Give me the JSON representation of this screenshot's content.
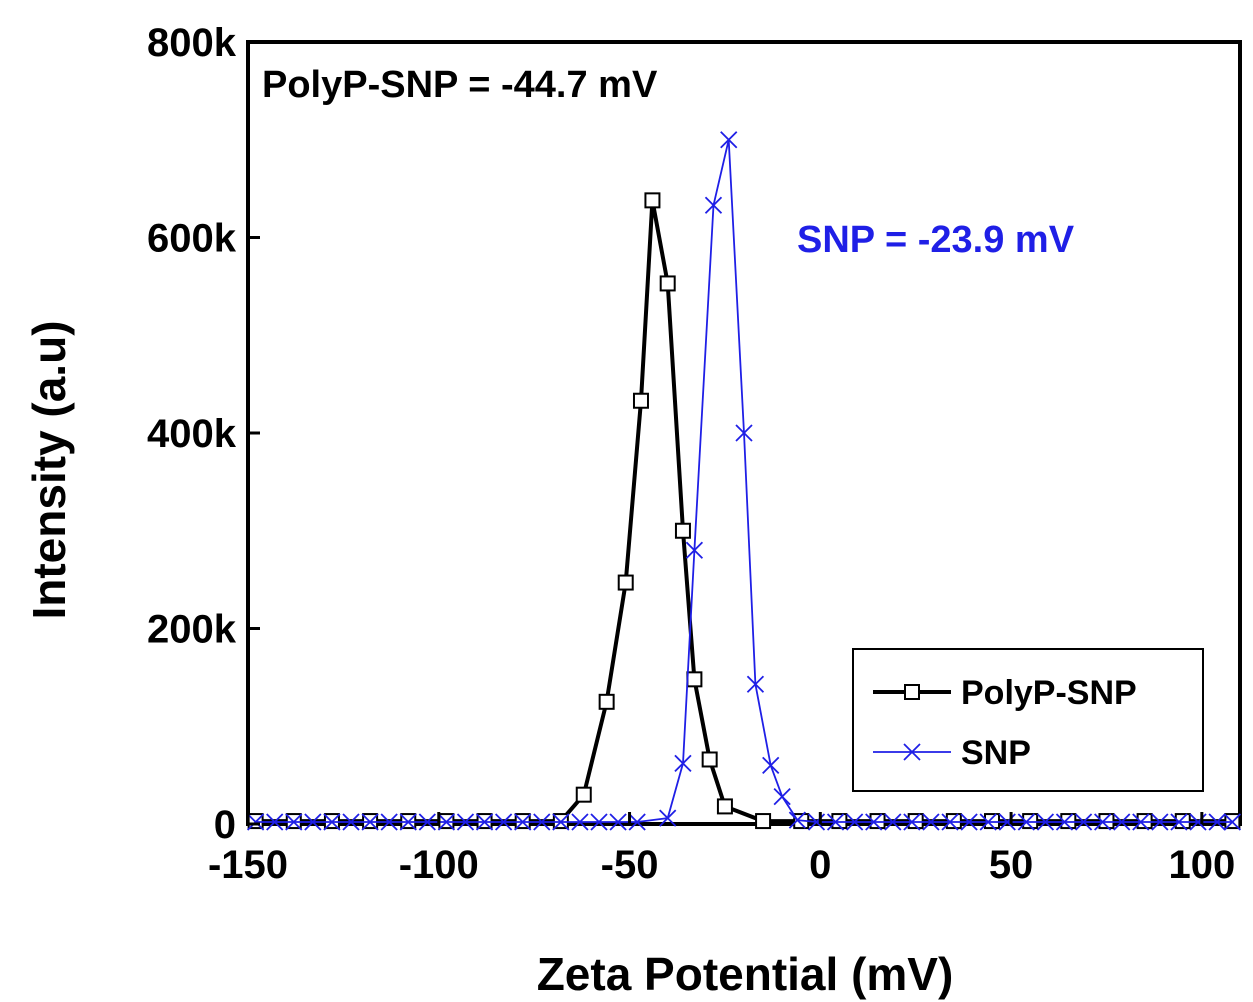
{
  "chart_data": {
    "type": "line",
    "xlabel": "Zeta Potential (mV)",
    "ylabel": "Intensity (a.u)",
    "xlim": [
      -150,
      110
    ],
    "ylim": [
      0,
      800000
    ],
    "xticks": [
      -150,
      -100,
      -50,
      0,
      50,
      100
    ],
    "yticks": [
      0,
      200000,
      400000,
      600000,
      800000
    ],
    "ytick_labels": [
      "0",
      "200k",
      "400k",
      "600k",
      "800k"
    ],
    "grid": false,
    "legend_position": "bottom-right",
    "series": [
      {
        "name": "PolyP-SNP",
        "color": "#000000",
        "marker": "open-square",
        "points": [
          [
            -148,
            3000
          ],
          [
            -138,
            3000
          ],
          [
            -128,
            3000
          ],
          [
            -118,
            3000
          ],
          [
            -108,
            3000
          ],
          [
            -98,
            3000
          ],
          [
            -88,
            3000
          ],
          [
            -78,
            3000
          ],
          [
            -68,
            3000
          ],
          [
            -62,
            30000
          ],
          [
            -56,
            125000
          ],
          [
            -51,
            247000
          ],
          [
            -47,
            433000
          ],
          [
            -44,
            638000
          ],
          [
            -40,
            553000
          ],
          [
            -36,
            300000
          ],
          [
            -33,
            148000
          ],
          [
            -29,
            66000
          ],
          [
            -25,
            18000
          ],
          [
            -15,
            3000
          ],
          [
            -5,
            3000
          ],
          [
            5,
            3000
          ],
          [
            15,
            3000
          ],
          [
            25,
            3000
          ],
          [
            35,
            3000
          ],
          [
            45,
            3000
          ],
          [
            55,
            3000
          ],
          [
            65,
            3000
          ],
          [
            75,
            3000
          ],
          [
            85,
            3000
          ],
          [
            95,
            3000
          ],
          [
            108,
            3000
          ]
        ]
      },
      {
        "name": "SNP",
        "color": "#1f1fe6",
        "marker": "x",
        "points": [
          [
            -148,
            2000
          ],
          [
            -143,
            2000
          ],
          [
            -138,
            2000
          ],
          [
            -133,
            2000
          ],
          [
            -128,
            2000
          ],
          [
            -123,
            2000
          ],
          [
            -118,
            2000
          ],
          [
            -113,
            2000
          ],
          [
            -108,
            2000
          ],
          [
            -103,
            2000
          ],
          [
            -98,
            2000
          ],
          [
            -93,
            2000
          ],
          [
            -88,
            2000
          ],
          [
            -83,
            2000
          ],
          [
            -78,
            2000
          ],
          [
            -73,
            2000
          ],
          [
            -68,
            2000
          ],
          [
            -63,
            2000
          ],
          [
            -58,
            2000
          ],
          [
            -53,
            2000
          ],
          [
            -48,
            2000
          ],
          [
            -40,
            6000
          ],
          [
            -36,
            62000
          ],
          [
            -33,
            280000
          ],
          [
            -28,
            633000
          ],
          [
            -24,
            700000
          ],
          [
            -20,
            400000
          ],
          [
            -17,
            143000
          ],
          [
            -13,
            60000
          ],
          [
            -10,
            28000
          ],
          [
            -6,
            4000
          ],
          [
            -1,
            2000
          ],
          [
            4,
            2000
          ],
          [
            9,
            2000
          ],
          [
            14,
            2000
          ],
          [
            19,
            2000
          ],
          [
            24,
            2000
          ],
          [
            29,
            2000
          ],
          [
            34,
            2000
          ],
          [
            39,
            2000
          ],
          [
            44,
            2000
          ],
          [
            49,
            2000
          ],
          [
            54,
            2000
          ],
          [
            59,
            2000
          ],
          [
            64,
            2000
          ],
          [
            69,
            2000
          ],
          [
            74,
            2000
          ],
          [
            79,
            2000
          ],
          [
            84,
            2000
          ],
          [
            89,
            2000
          ],
          [
            94,
            2000
          ],
          [
            99,
            2000
          ],
          [
            104,
            2000
          ],
          [
            108,
            2000
          ]
        ]
      }
    ],
    "annotations": [
      {
        "text": "PolyP-SNP = -44.7 mV",
        "color": "#000000",
        "anchor": "top-left"
      },
      {
        "text": "SNP = -23.9 mV",
        "color": "#1f1fe6",
        "anchor": "upper-right"
      }
    ]
  }
}
